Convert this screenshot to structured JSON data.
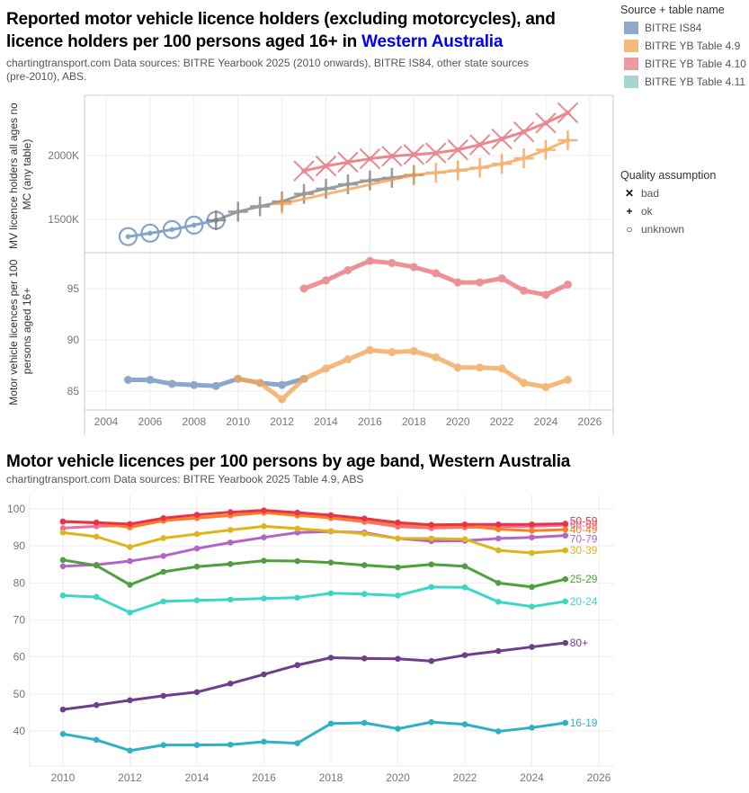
{
  "chart1": {
    "title_part1": "Reported motor vehicle licence holders (excluding motorcycles), and",
    "title_part2": "licence holders per 100 persons aged 16+ in ",
    "title_highlight": "Western Australia",
    "subtitle_line1": "chartingtransport.com  Data sources: BITRE Yearbook 2025 (2010 onwards), BITRE IS84, other state sources",
    "subtitle_line2": "(pre-2010), ABS.",
    "legend_source": {
      "title": "Source + table name",
      "items": [
        {
          "label": "BITRE IS84",
          "color": "#8fa9c9"
        },
        {
          "label": "BITRE YB Table 4.9",
          "color": "#f5b97c"
        },
        {
          "label": "BITRE YB Table 4.10",
          "color": "#ec9a9e"
        },
        {
          "label": "BITRE YB Table 4.11",
          "color": "#a8d5cf"
        }
      ]
    },
    "legend_quality": {
      "title": "Quality assumption",
      "items": [
        {
          "label": "bad",
          "symbol": "✕"
        },
        {
          "label": "ok",
          "symbol": "+"
        },
        {
          "label": "unknown",
          "symbol": "○"
        }
      ]
    }
  },
  "chart_data": [
    {
      "type": "line",
      "title": "Reported motor vehicle licence holders (excluding motorcycles)",
      "ylabel": "MV licence holders all ages no MC (any table)",
      "xlabel": "",
      "ylim": [
        1300,
        2400
      ],
      "yticks": [
        1500,
        2000
      ],
      "ytick_labels": [
        "1500K",
        "2000K"
      ],
      "xlim": [
        2003,
        2027
      ],
      "xticks": [
        2004,
        2006,
        2008,
        2010,
        2012,
        2014,
        2016,
        2018,
        2020,
        2022,
        2024,
        2026
      ],
      "grid": true,
      "units": "thousands",
      "series": [
        {
          "name": "BITRE IS84 (unknown)",
          "color": "#5b87b8",
          "quality": "unknown",
          "x": [
            2005,
            2006,
            2007,
            2008,
            2009
          ],
          "y": [
            1365,
            1392,
            1420,
            1455,
            1493
          ]
        },
        {
          "name": "BITRE IS84 (ok)",
          "color": "#7a7a7a",
          "quality": "ok",
          "x": [
            2009,
            2010,
            2011,
            2012,
            2013,
            2014,
            2015,
            2016,
            2017,
            2018
          ],
          "y": [
            1493,
            1560,
            1602,
            1640,
            1700,
            1740,
            1775,
            1805,
            1825,
            1848
          ]
        },
        {
          "name": "BITRE YB Table 4.9",
          "color": "#f49b4a",
          "quality": "ok",
          "x": [
            2012,
            2018,
            2019,
            2020,
            2021,
            2022,
            2023,
            2024,
            2025
          ],
          "y": [
            1622,
            1848,
            1866,
            1883,
            1905,
            1935,
            1978,
            2045,
            2120
          ]
        },
        {
          "name": "BITRE YB Table 4.10",
          "color": "#e0626a",
          "quality": "bad",
          "x": [
            2013,
            2014,
            2015,
            2016,
            2017,
            2018,
            2019,
            2020,
            2021,
            2022,
            2023,
            2024,
            2025
          ],
          "y": [
            1880,
            1918,
            1948,
            1975,
            1995,
            2008,
            2020,
            2045,
            2085,
            2130,
            2185,
            2255,
            2335
          ]
        }
      ]
    },
    {
      "type": "line",
      "title": "Licence holders per 100 persons aged 16+",
      "ylabel": "Motor vehicle licences per 100 persons aged 16+",
      "xlabel": "",
      "ylim": [
        83.3,
        98.5
      ],
      "yticks": [
        85,
        90,
        95
      ],
      "xlim": [
        2003,
        2027
      ],
      "xticks": [
        2004,
        2006,
        2008,
        2010,
        2012,
        2014,
        2016,
        2018,
        2020,
        2022,
        2024,
        2026
      ],
      "grid": true,
      "series": [
        {
          "name": "BITRE IS84",
          "color": "#6f93c0",
          "x": [
            2005,
            2006,
            2007,
            2008,
            2009,
            2010,
            2011,
            2012,
            2013
          ],
          "y": [
            86.1,
            86.1,
            85.7,
            85.6,
            85.5,
            86.2,
            85.8,
            85.6,
            86.2
          ]
        },
        {
          "name": "BITRE YB Table 4.9",
          "color": "#f5a75a",
          "x": [
            2010,
            2011,
            2012,
            2013,
            2014,
            2015,
            2016,
            2017,
            2018,
            2019,
            2020,
            2021,
            2022,
            2023,
            2024,
            2025
          ],
          "y": [
            86.2,
            85.8,
            84.2,
            86.2,
            87.2,
            88.1,
            89.0,
            88.8,
            88.9,
            88.3,
            87.3,
            87.3,
            87.2,
            85.8,
            85.4,
            86.1
          ]
        },
        {
          "name": "BITRE YB Table 4.10",
          "color": "#e8777d",
          "x": [
            2013,
            2014,
            2015,
            2016,
            2017,
            2018,
            2019,
            2020,
            2021,
            2022,
            2023,
            2024,
            2025
          ],
          "y": [
            95.0,
            95.8,
            96.8,
            97.7,
            97.5,
            97.1,
            96.5,
            95.6,
            95.6,
            96.0,
            94.8,
            94.4,
            95.4
          ]
        }
      ]
    },
    {
      "type": "line",
      "title": "Motor vehicle licences per 100 persons by age band, Western Australia",
      "xlabel": "",
      "ylabel": "",
      "ylim": [
        31,
        103
      ],
      "yticks": [
        40,
        50,
        60,
        70,
        80,
        90,
        100
      ],
      "xlim": [
        2009,
        2026
      ],
      "xticks": [
        2010,
        2012,
        2014,
        2016,
        2018,
        2020,
        2022,
        2024,
        2026
      ],
      "grid": true,
      "x": [
        2010,
        2011,
        2012,
        2013,
        2014,
        2015,
        2016,
        2017,
        2018,
        2019,
        2020,
        2021,
        2022,
        2023,
        2024,
        2025
      ],
      "series": [
        {
          "name": "60-69",
          "color": "#f06da0",
          "y": [
            94.8,
            95.3,
            95.5,
            96.8,
            97.5,
            98.2,
            99.0,
            98.5,
            97.5,
            96.5,
            95.2,
            94.8,
            95.0,
            95.2,
            95.3,
            95.6
          ]
        },
        {
          "name": "40-49",
          "color": "#f58220",
          "y": [
            96.5,
            96.2,
            95.0,
            96.8,
            97.6,
            98.3,
            99.0,
            98.2,
            97.6,
            96.8,
            95.8,
            95.3,
            95.4,
            94.5,
            94.1,
            94.4
          ]
        },
        {
          "name": "50-59",
          "color": "#e8334a",
          "y": [
            96.6,
            96.3,
            95.9,
            97.5,
            98.4,
            99.1,
            99.6,
            99.0,
            98.3,
            97.4,
            96.3,
            95.7,
            95.8,
            95.8,
            95.8,
            96.0
          ]
        },
        {
          "name": "70-79",
          "color": "#b265c8",
          "y": [
            84.5,
            84.9,
            85.9,
            87.3,
            89.3,
            90.9,
            92.3,
            93.6,
            93.9,
            93.6,
            92.0,
            91.3,
            91.4,
            92.0,
            92.3,
            92.8
          ]
        },
        {
          "name": "30-39",
          "color": "#dfb51c",
          "y": [
            93.6,
            92.5,
            89.7,
            92.1,
            93.2,
            94.3,
            95.3,
            94.7,
            94.0,
            93.3,
            92.0,
            92.0,
            91.8,
            88.8,
            88.1,
            88.8
          ]
        },
        {
          "name": "25-29",
          "color": "#4e9f3d",
          "y": [
            86.2,
            84.7,
            79.5,
            83.0,
            84.4,
            85.1,
            86.0,
            85.9,
            85.5,
            84.8,
            84.2,
            85.0,
            84.5,
            80.0,
            78.9,
            81.0
          ]
        },
        {
          "name": "20-24",
          "color": "#3cd6c6",
          "y": [
            76.6,
            76.2,
            72.0,
            75.0,
            75.3,
            75.5,
            75.8,
            76.0,
            77.2,
            77.0,
            76.6,
            78.9,
            78.8,
            74.9,
            73.6,
            75.0
          ]
        },
        {
          "name": "80+",
          "color": "#6f3f8c",
          "y": [
            45.8,
            47.0,
            48.3,
            49.5,
            50.5,
            52.8,
            55.3,
            57.8,
            59.8,
            59.6,
            59.5,
            58.9,
            60.5,
            61.6,
            62.7,
            63.8
          ]
        },
        {
          "name": "16-19",
          "color": "#2eb1c2",
          "y": [
            39.2,
            37.6,
            34.7,
            36.2,
            36.2,
            36.3,
            37.1,
            36.7,
            42.0,
            42.2,
            40.6,
            42.4,
            41.8,
            39.9,
            40.9,
            42.2
          ]
        }
      ]
    }
  ],
  "chart2": {
    "title": "Motor vehicle licences per 100 persons by age band, Western Australia",
    "subtitle": "chartingtransport.com  Data sources: BITRE Yearbook 2025 Table 4.9, ABS"
  }
}
